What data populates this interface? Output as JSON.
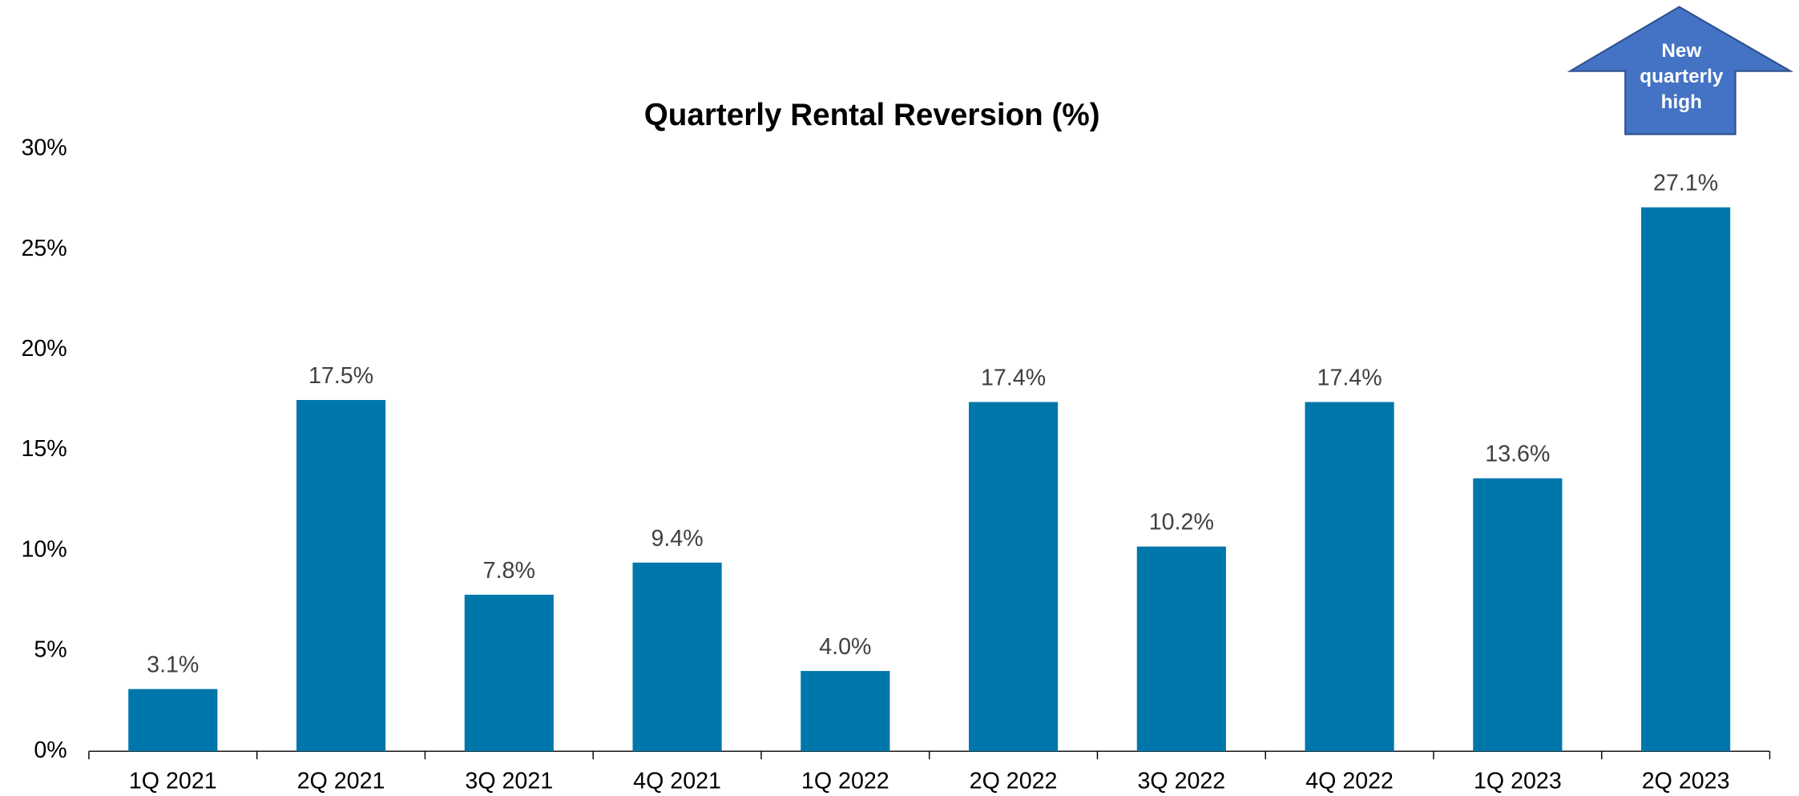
{
  "chart_data": {
    "type": "bar",
    "title": "Quarterly Rental Reversion (%)",
    "categories": [
      "1Q 2021",
      "2Q 2021",
      "3Q 2021",
      "4Q 2021",
      "1Q 2022",
      "2Q 2022",
      "3Q 2022",
      "4Q 2022",
      "1Q 2023",
      "2Q 2023"
    ],
    "values": [
      3.1,
      17.5,
      7.8,
      9.4,
      4.0,
      17.4,
      10.2,
      17.4,
      13.6,
      27.1
    ],
    "value_labels": [
      "3.1%",
      "17.5%",
      "7.8%",
      "9.4%",
      "4.0%",
      "17.4%",
      "10.2%",
      "17.4%",
      "13.6%",
      "27.1%"
    ],
    "color": "#0077aa",
    "ylim": [
      0,
      30
    ],
    "yticks": [
      {
        "value": 0,
        "label": "0%"
      },
      {
        "value": 5,
        "label": "5%"
      },
      {
        "value": 10,
        "label": "10%"
      },
      {
        "value": 15,
        "label": "15%"
      },
      {
        "value": 20,
        "label": "20%"
      },
      {
        "value": 25,
        "label": "25%"
      },
      {
        "value": 30,
        "label": "30%"
      }
    ],
    "grid": false,
    "annotation": [
      "New",
      "quarterly",
      "high"
    ]
  }
}
